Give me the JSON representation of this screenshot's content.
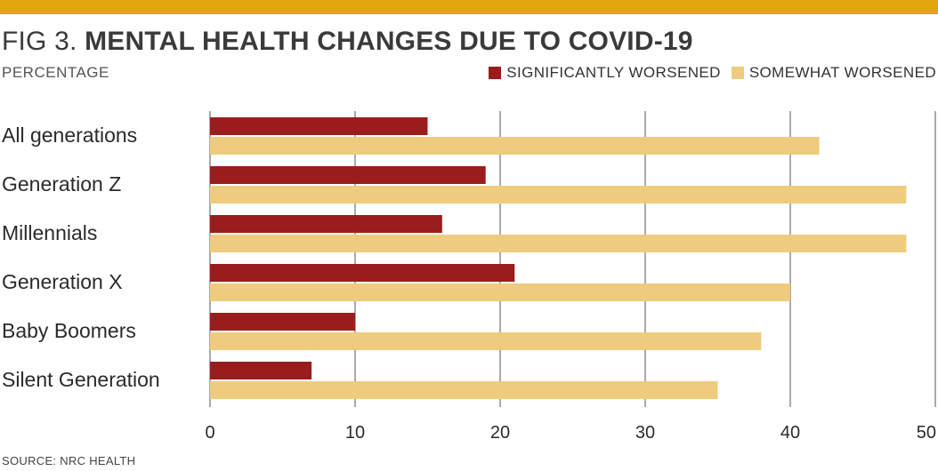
{
  "header": {
    "fig_label": "FIG 3.",
    "title": "MENTAL HEALTH CHANGES DUE TO COVID-19",
    "subtitle": "PERCENTAGE"
  },
  "source": "SOURCE: NRC HEALTH",
  "colors": {
    "accent_band": "#E0A50F",
    "significantly": "#9B1C1C",
    "somewhat": "#EECB7E",
    "grid": "#555555"
  },
  "chart_data": {
    "type": "bar",
    "orientation": "horizontal",
    "title": "MENTAL HEALTH CHANGES DUE TO COVID-19",
    "xlabel": "PERCENTAGE",
    "categories": [
      "All generations",
      "Generation Z",
      "Millennials",
      "Generation X",
      "Baby Boomers",
      "Silent Generation"
    ],
    "series": [
      {
        "name": "SIGNIFICANTLY WORSENED",
        "values": [
          15,
          19,
          16,
          21,
          10,
          7
        ]
      },
      {
        "name": "SOMEWHAT WORSENED",
        "values": [
          42,
          48,
          48,
          40,
          38,
          35
        ]
      }
    ],
    "xlim": [
      0,
      50
    ],
    "xticks": [
      "0",
      "10",
      "20",
      "30",
      "40",
      "50"
    ],
    "grid": true,
    "legend_position": "top-right"
  }
}
